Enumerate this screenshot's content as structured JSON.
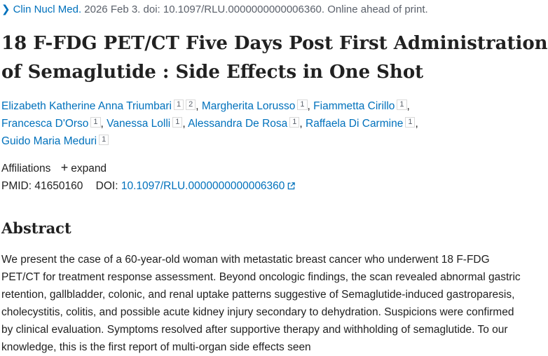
{
  "citation": {
    "journal": "Clin Nucl Med.",
    "details": " 2026 Feb 3. doi: 10.1097/RLU.0000000000006360. Online ahead of print."
  },
  "title_line1": "18 F-FDG PET/CT Five Days Post First Administration",
  "title_line2": "of Semaglutide : Side Effects in One Shot",
  "authors": [
    {
      "name": "Elizabeth Katherine Anna Triumbari",
      "affs": [
        "1",
        "2"
      ]
    },
    {
      "name": "Margherita Lorusso",
      "affs": [
        "1"
      ]
    },
    {
      "name": "Fiammetta Cirillo",
      "affs": [
        "1"
      ]
    },
    {
      "name": "Francesca D'Orso",
      "affs": [
        "1"
      ]
    },
    {
      "name": "Vanessa Lolli",
      "affs": [
        "1"
      ]
    },
    {
      "name": "Alessandra De Rosa",
      "affs": [
        "1"
      ]
    },
    {
      "name": "Raffaela Di Carmine",
      "affs": [
        "1"
      ]
    },
    {
      "name": "Guido Maria Meduri",
      "affs": [
        "1"
      ]
    }
  ],
  "affiliations": {
    "label": "Affiliations",
    "expand": "expand"
  },
  "ids": {
    "pmid_label": "PMID:",
    "pmid": "41650160",
    "doi_label": "DOI:",
    "doi": "10.1097/RLU.0000000000006360"
  },
  "abstract": {
    "heading": "Abstract",
    "text": "We present the case of a 60-year-old woman with metastatic breast cancer who underwent 18 F-FDG PET/CT for treatment response assessment. Beyond oncologic findings, the scan revealed abnormal gastric retention, gallbladder, colonic, and renal uptake patterns suggestive of Semaglutide-induced gastroparesis, cholecystitis, colitis, and possible acute kidney injury secondary to dehydration. Suspicions were confirmed by clinical evaluation. Symptoms resolved after supportive therapy and withholding of semaglutide. To our knowledge, this is the first report of multi-organ side effects seen"
  },
  "icons": {
    "chevron": "chevron-right-icon",
    "plus": "plus-icon",
    "external": "external-link-icon"
  },
  "colors": {
    "link": "#0071bc",
    "text": "#212121",
    "muted": "#5b616b"
  }
}
